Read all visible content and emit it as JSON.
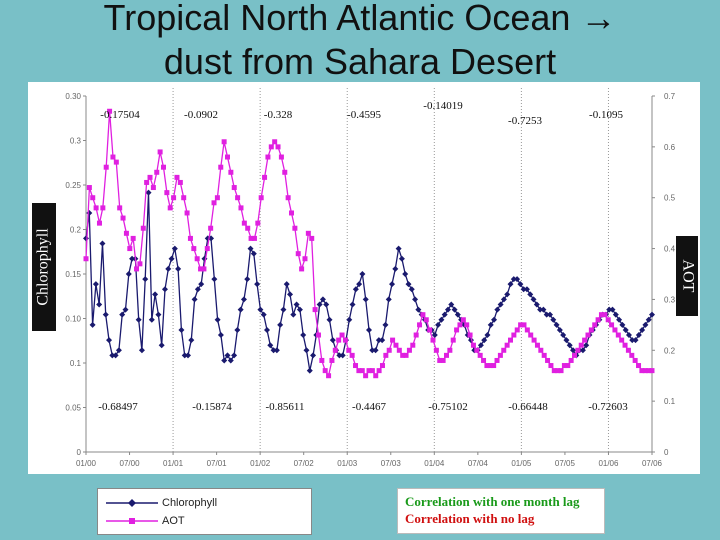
{
  "title": {
    "line1": "Tropical North Atlantic Ocean →",
    "line2": "dust from Sahara Desert"
  },
  "side_labels": {
    "left": "Chlorophyll",
    "right": "AOT"
  },
  "legend": {
    "chlorophyll": "Chlorophyll",
    "aot": "AOT"
  },
  "correlation_legend": {
    "lag": "Correlation with one month lag",
    "nolag": "Correlation with no lag"
  },
  "colors": {
    "chlorophyll": "#1a1a6e",
    "aot": "#e020e0",
    "lag": "#1a9a1a",
    "nolag": "#d01010",
    "background": "#79c0c7"
  },
  "chart_data": {
    "type": "line",
    "x_tick_labels": [
      "01/00",
      "07/00",
      "01/01",
      "07/01",
      "01/02",
      "07/02",
      "01/03",
      "07/03",
      "01/04",
      "07/04",
      "01/05",
      "07/05",
      "01/06",
      "07/06"
    ],
    "y_left_ticks": [
      "0.30",
      "0.3",
      "0.25",
      "0.2",
      "0.15",
      "0.10",
      "0.1",
      "0.05",
      "0"
    ],
    "y_right_ticks": [
      "0.7",
      "0.6",
      "0.5",
      "0.4",
      "0.3",
      "0.2",
      "0.1",
      "0"
    ],
    "ylim_left": [
      0,
      0.35
    ],
    "ylim_right": [
      0,
      0.7
    ],
    "series": [
      {
        "name": "Chlorophyll",
        "axis": "left",
        "marker": "diamond",
        "values": [
          0.21,
          0.235,
          0.125,
          0.165,
          0.145,
          0.205,
          0.135,
          0.11,
          0.095,
          0.095,
          0.1,
          0.135,
          0.14,
          0.175,
          0.19,
          0.19,
          0.13,
          0.1,
          0.17,
          0.255,
          0.13,
          0.155,
          0.135,
          0.105,
          0.16,
          0.18,
          0.19,
          0.2,
          0.18,
          0.12,
          0.095,
          0.095,
          0.11,
          0.15,
          0.16,
          0.165,
          0.19,
          0.21,
          0.21,
          0.17,
          0.13,
          0.115,
          0.09,
          0.095,
          0.09,
          0.095,
          0.12,
          0.14,
          0.15,
          0.17,
          0.2,
          0.195,
          0.165,
          0.14,
          0.135,
          0.12,
          0.105,
          0.1,
          0.1,
          0.125,
          0.14,
          0.165,
          0.155,
          0.135,
          0.145,
          0.14,
          0.115,
          0.1,
          0.08,
          0.095,
          0.115,
          0.145,
          0.15,
          0.145,
          0.13,
          0.11,
          0.1,
          0.095,
          0.095,
          0.11,
          0.13,
          0.145,
          0.16,
          0.165,
          0.175,
          0.15,
          0.12,
          0.1,
          0.1,
          0.11,
          0.11,
          0.125,
          0.15,
          0.165,
          0.18,
          0.2,
          0.19,
          0.175,
          0.165,
          0.16,
          0.15,
          0.14,
          0.135,
          0.13,
          0.12,
          0.12,
          0.115,
          0.125,
          0.13,
          0.135,
          0.14,
          0.145,
          0.14,
          0.135,
          0.13,
          0.125,
          0.115,
          0.11,
          0.1,
          0.1,
          0.105,
          0.11,
          0.115,
          0.125,
          0.13,
          0.14,
          0.145,
          0.15,
          0.155,
          0.165,
          0.17,
          0.17,
          0.165,
          0.16,
          0.16,
          0.155,
          0.15,
          0.145,
          0.14,
          0.14,
          0.135,
          0.135,
          0.13,
          0.125,
          0.12,
          0.115,
          0.11,
          0.105,
          0.1,
          0.095,
          0.1,
          0.1,
          0.105,
          0.115,
          0.12,
          0.125,
          0.13,
          0.135,
          0.135,
          0.14,
          0.14,
          0.135,
          0.13,
          0.125,
          0.12,
          0.115,
          0.11,
          0.11,
          0.115,
          0.12,
          0.125,
          0.13,
          0.135
        ]
      },
      {
        "name": "AOT",
        "axis": "right",
        "marker": "square",
        "values": [
          0.38,
          0.52,
          0.5,
          0.48,
          0.45,
          0.48,
          0.56,
          0.67,
          0.58,
          0.57,
          0.48,
          0.46,
          0.43,
          0.4,
          0.42,
          0.36,
          0.37,
          0.44,
          0.53,
          0.54,
          0.52,
          0.55,
          0.59,
          0.56,
          0.51,
          0.48,
          0.5,
          0.54,
          0.53,
          0.5,
          0.47,
          0.42,
          0.4,
          0.38,
          0.36,
          0.36,
          0.4,
          0.44,
          0.49,
          0.5,
          0.56,
          0.61,
          0.58,
          0.55,
          0.52,
          0.5,
          0.48,
          0.45,
          0.44,
          0.42,
          0.42,
          0.45,
          0.5,
          0.54,
          0.58,
          0.6,
          0.61,
          0.6,
          0.58,
          0.55,
          0.5,
          0.47,
          0.44,
          0.39,
          0.36,
          0.38,
          0.43,
          0.42,
          0.28,
          0.23,
          0.18,
          0.16,
          0.15,
          0.18,
          0.2,
          0.22,
          0.23,
          0.22,
          0.2,
          0.19,
          0.17,
          0.16,
          0.16,
          0.15,
          0.16,
          0.16,
          0.15,
          0.16,
          0.17,
          0.19,
          0.2,
          0.22,
          0.21,
          0.2,
          0.19,
          0.19,
          0.2,
          0.21,
          0.23,
          0.25,
          0.27,
          0.26,
          0.24,
          0.22,
          0.2,
          0.18,
          0.18,
          0.19,
          0.2,
          0.22,
          0.24,
          0.25,
          0.26,
          0.25,
          0.23,
          0.21,
          0.2,
          0.19,
          0.18,
          0.17,
          0.17,
          0.17,
          0.18,
          0.19,
          0.2,
          0.21,
          0.22,
          0.23,
          0.24,
          0.25,
          0.25,
          0.24,
          0.23,
          0.22,
          0.21,
          0.2,
          0.19,
          0.18,
          0.17,
          0.16,
          0.16,
          0.16,
          0.17,
          0.17,
          0.18,
          0.19,
          0.2,
          0.21,
          0.22,
          0.23,
          0.24,
          0.25,
          0.26,
          0.27,
          0.27,
          0.26,
          0.25,
          0.24,
          0.23,
          0.22,
          0.21,
          0.2,
          0.19,
          0.18,
          0.17,
          0.16,
          0.16,
          0.16,
          0.16
        ]
      }
    ],
    "annotations_lag": [
      "-0.17504",
      "-0.0902",
      "-0.328",
      "-0.4595",
      "-0.14019",
      "-0.7253",
      "-0.1095"
    ],
    "annotations_nolag": [
      "-0.68497",
      "-0.15874",
      "-0.85611",
      "-0.4467",
      "-0.75102",
      "-0.66448",
      "-0.72603"
    ],
    "period_separators": [
      "01/01",
      "01/02",
      "01/03",
      "01/04",
      "01/05",
      "01/06"
    ]
  }
}
